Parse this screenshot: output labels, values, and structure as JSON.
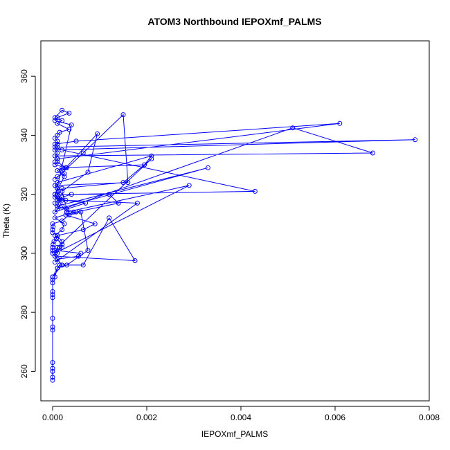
{
  "chart_data": {
    "type": "scatter",
    "title": "ATOM3 Northbound IEPOXmf_PALMS",
    "xlabel": "IEPOXmf_PALMS",
    "ylabel": "Theta (K)",
    "xlim": [
      -0.00025,
      0.008
    ],
    "ylim": [
      250,
      372
    ],
    "x_ticks": [
      "0.000",
      "0.002",
      "0.004",
      "0.006",
      "0.008"
    ],
    "x_tick_values": [
      0,
      0.002,
      0.004,
      0.006,
      0.008
    ],
    "y_ticks": [
      "260",
      "280",
      "300",
      "320",
      "340",
      "360"
    ],
    "y_tick_values": [
      260,
      280,
      300,
      320,
      340,
      360
    ],
    "grid": false,
    "marker": "open-circle",
    "connected": true,
    "color": "#0000ff",
    "series": [
      {
        "x": [
          0,
          0,
          0,
          0,
          0,
          0,
          0,
          0,
          0,
          0,
          0,
          0,
          0,
          5e-05,
          0.0001,
          0.00015,
          0.0002,
          0.0001,
          5e-05,
          0,
          0,
          0,
          1e-05,
          3e-05,
          8e-05,
          0.0001,
          0,
          0,
          1e-05,
          0,
          0.0002,
          0.00035,
          0.0006,
          0.00075,
          0.0003,
          0.0001,
          0,
          0,
          0.0002,
          0.00065,
          0.0012,
          0.00175,
          5e-05,
          0.0001,
          0.00015,
          0.0002,
          8e-05,
          5e-05,
          0.0002,
          0.00025,
          5e-05,
          0.00045,
          0.0001,
          0.00015,
          0.0001,
          5e-05,
          0.00012,
          0.0001,
          5e-05,
          0.0016,
          0.0015,
          0.00065,
          5e-05,
          0.0001,
          0.00025,
          0.0002,
          0.0003,
          5e-05,
          0.0001,
          0.00028,
          0.00095,
          0.00075,
          0.0002,
          0.0003,
          0.0007,
          0.00028,
          0.00015,
          0.0001,
          5e-05,
          0.00012,
          0.0001,
          5e-05,
          0.0001,
          0.0021,
          0.00195,
          0.0002,
          0.0001,
          0.00025,
          5e-05,
          0.0002,
          0.0003,
          0.0029,
          5e-05,
          0.0001,
          0.0021,
          0.0015,
          0.0002,
          0.0001,
          0.0012,
          0.0014,
          0.0005,
          0.00028,
          0.0009,
          0.00065,
          0.0001,
          0.0002,
          0.0002,
          5e-05,
          0.0006,
          0.00055,
          0.0001,
          5e-05,
          0.0018,
          0.0002,
          5e-05,
          0.0004,
          5e-05,
          0.0001,
          0.00035,
          0.0002,
          5e-05,
          0.0002,
          0.0001,
          0.00035,
          0.00015,
          0.0001,
          5e-05,
          0.0001,
          0.0001,
          5e-05,
          0.0002,
          0.0043,
          0.0004,
          0.0002,
          0.0001,
          5e-05,
          0.0001,
          0.0033,
          0.0001,
          5e-05,
          0.0051,
          0.0068,
          5e-05,
          0.0001,
          0.0061,
          0.0005,
          5e-05,
          0.0001,
          0.0077,
          5e-05,
          0.0001,
          5e-05,
          0.0001,
          5e-05
        ],
        "y": [
          257,
          258,
          260,
          261,
          263,
          274,
          275,
          278,
          285,
          286,
          287,
          290,
          291,
          292,
          295,
          296,
          296,
          298,
          299,
          300,
          301,
          302,
          303,
          304,
          305,
          306,
          307,
          308,
          309,
          310,
          311,
          313,
          314,
          301,
          296,
          295,
          292,
          292,
          296,
          296,
          312,
          297.5,
          299,
          300,
          302,
          303,
          305,
          306,
          308,
          310,
          312,
          314,
          316,
          318,
          319,
          320,
          321,
          322,
          323,
          324,
          347,
          334,
          325,
          326,
          327,
          328,
          329,
          330,
          331,
          329,
          340.5,
          327.5,
          321,
          315,
          317,
          318,
          318.5,
          319,
          320,
          321,
          322,
          323,
          324,
          333,
          330,
          329,
          328,
          326,
          320,
          316,
          314,
          323,
          300,
          302,
          332,
          324,
          322,
          320,
          320,
          317,
          314,
          313,
          310,
          308,
          306,
          304,
          302,
          301,
          300,
          299,
          298,
          297,
          317,
          318,
          319,
          343.5,
          345,
          346,
          347.5,
          348.5,
          346,
          345,
          344,
          342,
          341,
          340,
          339,
          338,
          337,
          336,
          335,
          321,
          320,
          319,
          318,
          317,
          316,
          329,
          315,
          314,
          342.5,
          334,
          333,
          332,
          344,
          338,
          337,
          336,
          338.5,
          335,
          334,
          333,
          332,
          331
        ]
      }
    ]
  }
}
